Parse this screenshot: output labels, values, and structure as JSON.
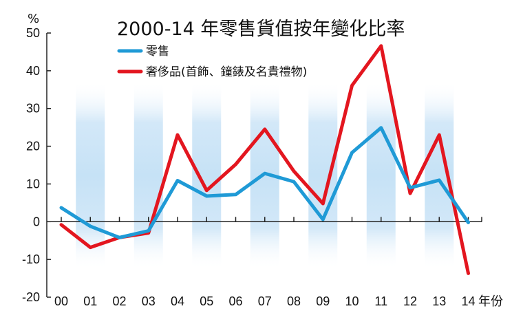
{
  "chart_data": {
    "type": "line",
    "title": "2000-14 年零售貨值按年變化比率",
    "y_unit": "%",
    "x_unit": "年份",
    "categories": [
      "00",
      "01",
      "02",
      "03",
      "04",
      "05",
      "06",
      "07",
      "08",
      "09",
      "10",
      "11",
      "12",
      "13",
      "14"
    ],
    "ylim": [
      -20,
      50
    ],
    "y_ticks": [
      50,
      40,
      30,
      20,
      10,
      0,
      -10,
      -20
    ],
    "legend_position": "top-left",
    "series": [
      {
        "name": "零售",
        "color": "#1f9ad6",
        "values": [
          3.7,
          -1.2,
          -4.2,
          -2.4,
          10.9,
          6.8,
          7.2,
          12.8,
          10.6,
          0.6,
          18.3,
          24.9,
          9.0,
          11.0,
          -0.2
        ]
      },
      {
        "name": "奢侈品(首飾、鐘錶及名貴禮物)",
        "color": "#e3161f",
        "values": [
          -0.8,
          -6.8,
          -4.2,
          -3.0,
          23.0,
          8.3,
          15.2,
          24.5,
          13.4,
          4.8,
          36.1,
          46.6,
          7.5,
          23.0,
          -13.7
        ]
      }
    ],
    "background_bands": {
      "style": "alternating light-blue vertical gradient bands",
      "color": "#cfe6f7"
    }
  }
}
